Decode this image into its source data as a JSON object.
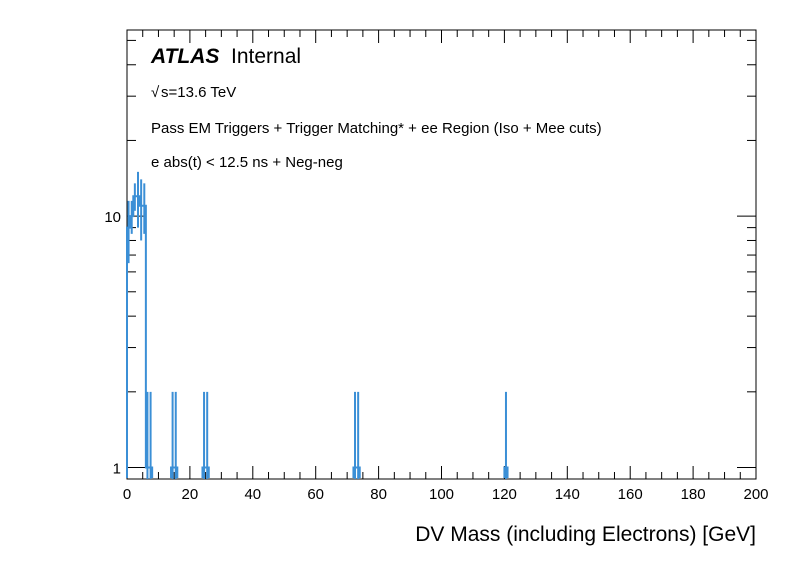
{
  "chart_data": {
    "type": "histogram",
    "title": "",
    "xlabel": "DV Mass (including Electrons) [GeV]",
    "ylabel": "",
    "xlim": [
      0,
      200
    ],
    "ylim": [
      0.9,
      55
    ],
    "yscale": "log",
    "x_ticks": [
      0,
      20,
      40,
      60,
      80,
      100,
      120,
      140,
      160,
      180,
      200
    ],
    "y_ticks": [
      1,
      10
    ],
    "bin_width": 1,
    "color": "#3b8fd6",
    "bins": [
      {
        "low": 0,
        "high": 1,
        "value": 9,
        "error": 2.5
      },
      {
        "low": 1,
        "high": 2,
        "value": 10,
        "error": 1.5
      },
      {
        "low": 2,
        "high": 3,
        "value": 12,
        "error": 1.5
      },
      {
        "low": 3,
        "high": 4,
        "value": 12,
        "error": 3.0
      },
      {
        "low": 4,
        "high": 5,
        "value": 11,
        "error": 3.0
      },
      {
        "low": 5,
        "high": 6,
        "value": 11,
        "error": 2.5
      },
      {
        "low": 6,
        "high": 7,
        "value": 1,
        "error": 1.0
      },
      {
        "low": 7,
        "high": 8,
        "value": 1,
        "error": 1.0
      },
      {
        "low": 14,
        "high": 15,
        "value": 1,
        "error": 1.0
      },
      {
        "low": 15,
        "high": 16,
        "value": 1,
        "error": 1.0
      },
      {
        "low": 24,
        "high": 25,
        "value": 1,
        "error": 1.0
      },
      {
        "low": 25,
        "high": 26,
        "value": 1,
        "error": 1.0
      },
      {
        "low": 72,
        "high": 73,
        "value": 1,
        "error": 1.0
      },
      {
        "low": 73,
        "high": 74,
        "value": 1,
        "error": 1.0
      },
      {
        "low": 120,
        "high": 121,
        "value": 1,
        "error": 1.0
      }
    ],
    "annotations": {
      "atlas": "ATLAS",
      "internal": "Internal",
      "energy_root": "√",
      "energy": "s=13.6 TeV",
      "selection": "Pass EM Triggers + Trigger Matching* + ee Region (Iso + Mee cuts)",
      "cut": "e abs(t) < 12.5 ns + Neg-neg"
    }
  }
}
